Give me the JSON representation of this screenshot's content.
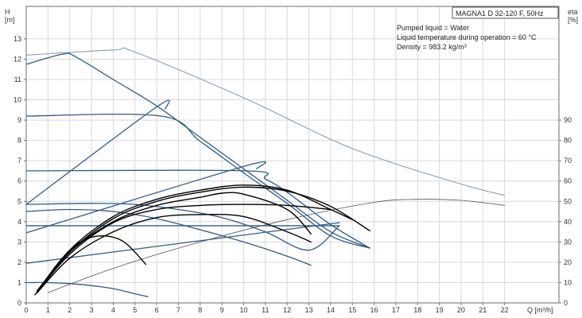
{
  "chart_data": {
    "type": "line",
    "title": "MAGNA1 D 32-120 F, 50Hz",
    "info_lines": [
      "Pumped liquid = Water",
      "Liquid temperature during operation = 60 °C",
      "Density = 983.2 kg/m³"
    ],
    "ylabel_left": [
      "H",
      "[m]"
    ],
    "ylabel_right": [
      "eta",
      "[%]"
    ],
    "xlabel": "Q [m³/h]",
    "xlim": [
      0,
      24.5
    ],
    "ylim": [
      0,
      14.6
    ],
    "eta_ylim": [
      0,
      146
    ],
    "x_ticks": [
      0,
      1,
      2,
      3,
      4,
      5,
      6,
      7,
      8,
      9,
      10,
      11,
      12,
      13,
      14,
      15,
      16,
      17,
      18,
      19,
      20,
      21,
      22
    ],
    "y_ticks": [
      0,
      1,
      2,
      3,
      4,
      5,
      6,
      7,
      8,
      9,
      10,
      11,
      12,
      13
    ],
    "eta_ticks": [
      0,
      10,
      20,
      30,
      40,
      50,
      60,
      70,
      80,
      90
    ],
    "grid": true,
    "colors": {
      "pump_curves": "#2e5c8a",
      "envelope": "#8a9bb5",
      "efficiency": "#000000",
      "efficiency_thin": "#555555",
      "grid": "#d9d9d9"
    },
    "series": [
      {
        "group": "pump_curves",
        "points": [
          [
            0,
            11.75
          ],
          [
            1.7,
            12.25
          ],
          [
            2.3,
            12.1
          ],
          [
            4,
            11
          ],
          [
            6,
            9.7
          ],
          [
            8,
            8.15
          ],
          [
            10,
            6.6
          ],
          [
            12,
            5.05
          ],
          [
            14,
            3.5
          ],
          [
            15.8,
            2.7
          ]
        ]
      },
      {
        "group": "pump_curves",
        "points": [
          [
            0,
            9.2
          ],
          [
            6.2,
            9.2
          ],
          [
            8,
            7.95
          ],
          [
            10,
            6.4
          ],
          [
            12,
            4.9
          ],
          [
            14,
            3.3
          ],
          [
            15.8,
            2.7
          ]
        ]
      },
      {
        "group": "pump_curves",
        "points": [
          [
            0,
            6.5
          ],
          [
            10.1,
            6.5
          ],
          [
            11,
            6.1
          ],
          [
            12,
            5.45
          ],
          [
            14,
            3.85
          ],
          [
            15.8,
            2.7
          ]
        ]
      },
      {
        "group": "pump_curves",
        "points": [
          [
            0,
            4.85
          ],
          [
            3,
            4.9
          ],
          [
            5,
            4.85
          ],
          [
            7,
            4.6
          ],
          [
            9,
            4.2
          ],
          [
            11,
            3.5
          ],
          [
            13,
            2.6
          ],
          [
            14.4,
            3.8
          ]
        ]
      },
      {
        "group": "pump_curves",
        "points": [
          [
            0,
            3.8
          ],
          [
            14.4,
            3.8
          ]
        ]
      },
      {
        "group": "pump_curves",
        "points": [
          [
            0,
            4.5
          ],
          [
            2,
            4.6
          ],
          [
            4,
            4.5
          ],
          [
            6,
            4.15
          ],
          [
            8,
            3.6
          ],
          [
            10,
            3
          ],
          [
            12,
            2.3
          ],
          [
            13.1,
            1.85
          ]
        ]
      },
      {
        "group": "pump_curves",
        "points": [
          [
            0,
            1
          ],
          [
            1,
            1
          ],
          [
            2,
            0.95
          ],
          [
            3,
            0.85
          ],
          [
            4,
            0.7
          ],
          [
            5,
            0.45
          ],
          [
            5.6,
            0.3
          ]
        ]
      },
      {
        "group": "pump_curves",
        "points": [
          [
            0,
            4.85
          ],
          [
            6,
            9.65
          ],
          [
            6.4,
            9.55
          ]
        ]
      },
      {
        "group": "pump_curves",
        "points": [
          [
            0,
            3.45
          ],
          [
            10.1,
            6.75
          ],
          [
            10.6,
            6.6
          ]
        ]
      },
      {
        "group": "pump_curves",
        "points": [
          [
            0,
            1.95
          ],
          [
            14.4,
            3.95
          ]
        ]
      },
      {
        "group": "envelope",
        "points": [
          [
            0,
            12.2
          ],
          [
            4,
            12.45
          ],
          [
            5,
            12.35
          ],
          [
            10,
            10.1
          ],
          [
            15,
            7.6
          ],
          [
            20,
            5.85
          ],
          [
            22,
            5.3
          ]
        ]
      },
      {
        "group": "efficiency",
        "points": [
          [
            0.5,
            0.5
          ],
          [
            2,
            2.5
          ],
          [
            4,
            4.15
          ],
          [
            6,
            5
          ],
          [
            8,
            5.45
          ],
          [
            10,
            5.7
          ],
          [
            12,
            5.5
          ],
          [
            14,
            4.75
          ],
          [
            15.8,
            3.55
          ]
        ]
      },
      {
        "group": "efficiency",
        "points": [
          [
            0.5,
            0.55
          ],
          [
            2,
            2.6
          ],
          [
            4,
            4.25
          ],
          [
            6,
            5.1
          ],
          [
            8,
            5.55
          ],
          [
            10,
            5.8
          ],
          [
            12,
            5.55
          ],
          [
            14,
            4.6
          ],
          [
            15,
            4.1
          ]
        ]
      },
      {
        "group": "efficiency",
        "points": [
          [
            0.4,
            0.4
          ],
          [
            2,
            2.4
          ],
          [
            4,
            3.95
          ],
          [
            6,
            4.6
          ],
          [
            8,
            4.8
          ],
          [
            10,
            4.85
          ],
          [
            12,
            4.8
          ],
          [
            14,
            4.6
          ]
        ]
      },
      {
        "group": "efficiency",
        "points": [
          [
            0.5,
            0.6
          ],
          [
            2,
            2.5
          ],
          [
            4,
            4
          ],
          [
            6,
            4.8
          ],
          [
            8,
            5.2
          ],
          [
            9,
            5.4
          ],
          [
            10,
            5.35
          ],
          [
            12,
            4.6
          ],
          [
            13.1,
            3.4
          ]
        ]
      },
      {
        "group": "efficiency",
        "points": [
          [
            0.5,
            0.5
          ],
          [
            2,
            2.2
          ],
          [
            4,
            3.5
          ],
          [
            6,
            4.2
          ],
          [
            8,
            4.35
          ],
          [
            10,
            4.25
          ],
          [
            12,
            3.5
          ],
          [
            13.1,
            3
          ]
        ]
      },
      {
        "group": "efficiency",
        "points": [
          [
            0.5,
            0.5
          ],
          [
            1.5,
            2
          ],
          [
            2.5,
            3
          ],
          [
            3.5,
            3.3
          ],
          [
            4.5,
            3
          ],
          [
            5.5,
            1.9
          ]
        ]
      },
      {
        "group": "efficiency_thin",
        "points": [
          [
            1,
            0.5
          ],
          [
            4,
            1.7
          ],
          [
            8,
            3
          ],
          [
            12,
            4.1
          ],
          [
            16,
            4.95
          ],
          [
            18,
            5.1
          ],
          [
            20,
            5.05
          ],
          [
            22,
            4.8
          ]
        ]
      }
    ]
  }
}
